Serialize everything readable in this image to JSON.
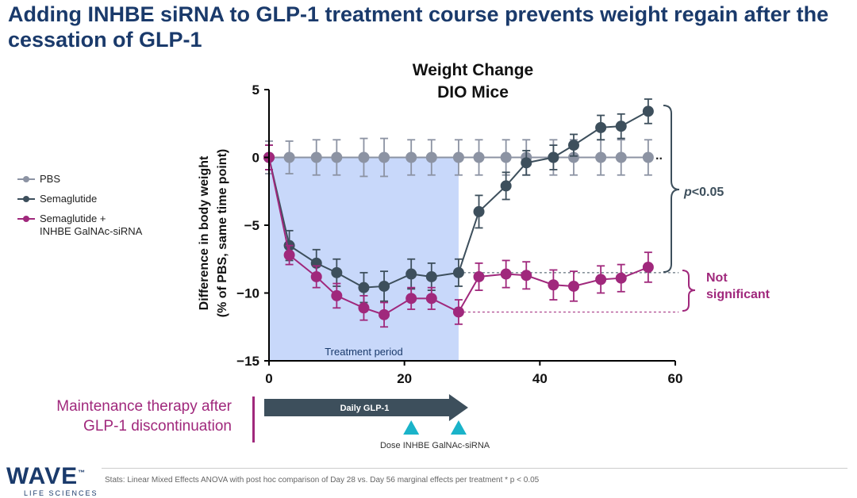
{
  "page_title": "Adding INHBE siRNA to GLP-1 treatment course prevents weight regain after the cessation of GLP-1",
  "chart_data": {
    "type": "line",
    "title_line1": "Weight Change",
    "title_line2": "DIO Mice",
    "ylabel_line1": "Difference in body weight",
    "ylabel_line2": "(% of PBS, same time point)",
    "xlim": [
      0,
      60
    ],
    "ylim": [
      -15,
      5
    ],
    "x_ticks": [
      0,
      20,
      40,
      60
    ],
    "y_ticks": [
      5,
      0,
      -5,
      -10,
      -15
    ],
    "shaded_region": {
      "x": [
        0,
        28
      ],
      "label": "Treatment period"
    },
    "series": [
      {
        "name": "PBS",
        "color": "#8c93a3",
        "x": [
          0,
          3,
          7,
          10,
          14,
          17,
          21,
          24,
          28,
          31,
          35,
          38,
          42,
          45,
          49,
          52,
          56
        ],
        "y": [
          0,
          0,
          0,
          0,
          0,
          0,
          0,
          0,
          0,
          0,
          0,
          0,
          0,
          0,
          0,
          0,
          0
        ],
        "err": [
          1.2,
          1.2,
          1.3,
          1.3,
          1.4,
          1.4,
          1.3,
          1.3,
          1.3,
          1.3,
          1.3,
          1.3,
          1.3,
          1.3,
          1.3,
          1.3,
          1.3
        ]
      },
      {
        "name": "Semaglutide",
        "color": "#3d4f5c",
        "x": [
          0,
          3,
          7,
          10,
          14,
          17,
          21,
          24,
          28,
          31,
          35,
          38,
          42,
          45,
          49,
          52,
          56
        ],
        "y": [
          0,
          -6.5,
          -7.8,
          -8.5,
          -9.6,
          -9.5,
          -8.6,
          -8.8,
          -8.5,
          -4.0,
          -2.1,
          -0.4,
          0.0,
          0.9,
          2.2,
          2.3,
          3.4
        ],
        "err": [
          0.9,
          1.1,
          1.0,
          1.0,
          1.1,
          1.1,
          1.1,
          1.0,
          1.0,
          1.2,
          1.0,
          0.9,
          0.9,
          0.8,
          0.9,
          0.9,
          0.9
        ]
      },
      {
        "name": "Semaglutide +\nINHBE GalNAc-siRNA",
        "color": "#a0287c",
        "x": [
          0,
          3,
          7,
          10,
          14,
          17,
          21,
          24,
          28,
          31,
          35,
          38,
          42,
          45,
          49,
          52,
          56
        ],
        "y": [
          0,
          -7.2,
          -8.8,
          -10.2,
          -11.1,
          -11.6,
          -10.4,
          -10.4,
          -11.4,
          -8.8,
          -8.6,
          -8.7,
          -9.4,
          -9.5,
          -9.0,
          -8.9,
          -8.1
        ],
        "err": [
          0.9,
          0.7,
          0.8,
          0.9,
          0.9,
          0.9,
          0.8,
          0.8,
          0.9,
          1.0,
          1.0,
          1.0,
          1.1,
          1.1,
          1.0,
          1.0,
          1.1
        ]
      }
    ],
    "annotations": {
      "significant": "<0.05",
      "significant_p": "p",
      "not_significant": "Not\nsignificant"
    },
    "dosing": {
      "arrow_label": "Daily GLP-1",
      "arrow_x": [
        0,
        28
      ],
      "dose_days": [
        21,
        28
      ],
      "dose_label": "Dose INHBE GalNAc-siRNA",
      "dose_color": "#1ab3c9"
    }
  },
  "maintenance_label": "Maintenance therapy after\nGLP-1 discontinuation",
  "logo": {
    "name": "WAVE",
    "tm": "™",
    "sub": "LIFE SCIENCES"
  },
  "footer_stats": "Stats: Linear Mixed Effects ANOVA with post hoc comparison of Day 28 vs. Day 56 marginal effects per treatment * p < 0.05"
}
